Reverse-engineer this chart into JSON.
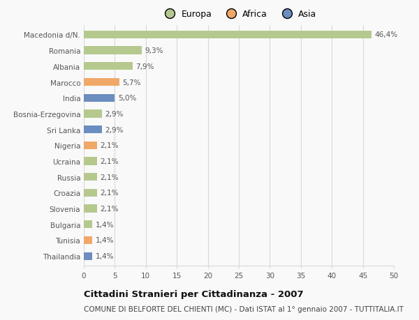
{
  "categories": [
    "Thailandia",
    "Tunisia",
    "Bulgaria",
    "Slovenia",
    "Croazia",
    "Russia",
    "Ucraina",
    "Nigeria",
    "Sri Lanka",
    "Bosnia-Erzegovina",
    "India",
    "Marocco",
    "Albania",
    "Romania",
    "Macedonia d/N."
  ],
  "values": [
    1.4,
    1.4,
    1.4,
    2.1,
    2.1,
    2.1,
    2.1,
    2.1,
    2.9,
    2.9,
    5.0,
    5.7,
    7.9,
    9.3,
    46.4
  ],
  "labels": [
    "1,4%",
    "1,4%",
    "1,4%",
    "2,1%",
    "2,1%",
    "2,1%",
    "2,1%",
    "2,1%",
    "2,9%",
    "2,9%",
    "5,0%",
    "5,7%",
    "7,9%",
    "9,3%",
    "46,4%"
  ],
  "continents": [
    "Asia",
    "Africa",
    "Europa",
    "Europa",
    "Europa",
    "Europa",
    "Europa",
    "Africa",
    "Asia",
    "Europa",
    "Asia",
    "Africa",
    "Europa",
    "Europa",
    "Europa"
  ],
  "colors": {
    "Europa": "#b5c98e",
    "Africa": "#f0a868",
    "Asia": "#6b8dbf"
  },
  "legend_items": [
    "Europa",
    "Africa",
    "Asia"
  ],
  "xlim": [
    0,
    50
  ],
  "xticks": [
    0,
    5,
    10,
    15,
    20,
    25,
    30,
    35,
    40,
    45,
    50
  ],
  "title_bold": "Cittadini Stranieri per Cittadinanza - 2007",
  "subtitle": "COMUNE DI BELFORTE DEL CHIENTI (MC) - Dati ISTAT al 1° gennaio 2007 - TUTTITALIA.IT",
  "background_color": "#f9f9f9",
  "bar_height": 0.5,
  "grid_color": "#d8d8d8",
  "text_color": "#555555",
  "label_fontsize": 7.5,
  "tick_fontsize": 7.5,
  "title_fontsize": 9.5,
  "subtitle_fontsize": 7.5
}
